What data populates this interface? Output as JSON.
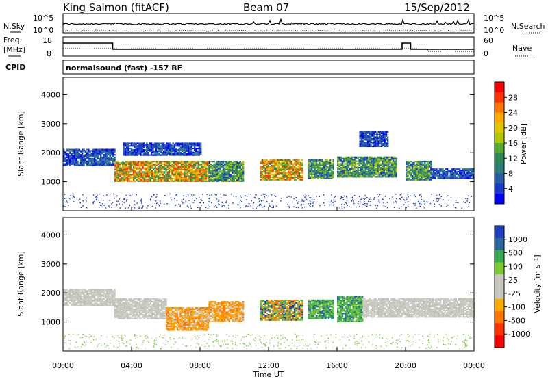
{
  "header": {
    "station": "King Salmon (fitACF)",
    "beam": "Beam 07",
    "date": "15/Sep/2012"
  },
  "panels": {
    "noise_left_label": "N.Sky",
    "noise_right_label": "N.Search",
    "noise_ticks": [
      "10^5",
      "10^0"
    ],
    "freq_label_1": "Freq.",
    "freq_label_2": "[MHz]",
    "freq_ticks": [
      "18",
      "8"
    ],
    "nave_label": "Nave",
    "nave_ticks": [
      "60",
      "0"
    ],
    "cpid_label": "CPID",
    "cpid_text": "normalsound (fast) -157 RF"
  },
  "chart_data": [
    {
      "type": "heatmap",
      "name": "power",
      "ylabel": "Slant Range [km]",
      "xlabel": "",
      "ylim": [
        0,
        4600
      ],
      "yticks": [
        "4000",
        "3000",
        "2000",
        "1000"
      ],
      "colorbar_label": "Power [dB]",
      "colorbar_ticks": [
        "28",
        "24",
        "20",
        "16",
        "12",
        "8",
        "4"
      ],
      "colorbar_colors": [
        "#ff0000",
        "#ff3300",
        "#ff7700",
        "#ffaa00",
        "#e0c800",
        "#b0c800",
        "#55aa33",
        "#2e8b57",
        "#2f7f7f",
        "#2a5fa8",
        "#1a3ccc",
        "#0000ff"
      ],
      "echo_bands": [
        {
          "t0": 0.0,
          "t1": 3.0,
          "r0": 1550,
          "r1": 2100,
          "level": "low"
        },
        {
          "t0": 3.0,
          "t1": 8.5,
          "r0": 1000,
          "r1": 1700,
          "level": "high"
        },
        {
          "t0": 3.5,
          "t1": 8.0,
          "r0": 1900,
          "r1": 2350,
          "level": "low"
        },
        {
          "t0": 8.5,
          "t1": 10.5,
          "r0": 1000,
          "r1": 1700,
          "level": "mid"
        },
        {
          "t0": 11.5,
          "t1": 14.0,
          "r0": 1050,
          "r1": 1750,
          "level": "high"
        },
        {
          "t0": 14.3,
          "t1": 15.8,
          "r0": 1100,
          "r1": 1750,
          "level": "mid"
        },
        {
          "t0": 16.0,
          "t1": 19.5,
          "r0": 1150,
          "r1": 1850,
          "level": "mid"
        },
        {
          "t0": 20.0,
          "t1": 21.5,
          "r0": 1050,
          "r1": 1700,
          "level": "mid"
        },
        {
          "t0": 21.5,
          "t1": 24.0,
          "r0": 1100,
          "r1": 1450,
          "level": "low"
        },
        {
          "t0": 17.3,
          "t1": 19.0,
          "r0": 2200,
          "r1": 2700,
          "level": "low"
        }
      ]
    },
    {
      "type": "heatmap",
      "name": "velocity",
      "ylabel": "Slant Range [km]",
      "xlabel": "Time UT",
      "ylim": [
        0,
        4600
      ],
      "yticks": [
        "4000",
        "3000",
        "2000",
        "1000"
      ],
      "xticks": [
        "00:00",
        "04:00",
        "08:00",
        "12:00",
        "16:00",
        "20:00",
        "00:00"
      ],
      "xlim_hours": [
        0,
        24
      ],
      "colorbar_label": "Velocity [m s⁻¹]",
      "colorbar_ticks": [
        "1000",
        "500",
        "100",
        "25",
        "-25",
        "-100",
        "-500",
        "-1000"
      ],
      "colorbar_colors": [
        "#2040c0",
        "#2a6aa0",
        "#3aaa50",
        "#7acc30",
        "#c8c8c0",
        "#c8c8c0",
        "#ffaa00",
        "#ff7700",
        "#ff3300",
        "#ff0000"
      ],
      "echo_bands": [
        {
          "t0": 0.0,
          "t1": 3.0,
          "r0": 1550,
          "r1": 2100,
          "level": "ground"
        },
        {
          "t0": 3.0,
          "t1": 6.0,
          "r0": 1100,
          "r1": 1800,
          "level": "ground"
        },
        {
          "t0": 6.0,
          "t1": 8.5,
          "r0": 700,
          "r1": 1500,
          "level": "neg"
        },
        {
          "t0": 8.5,
          "t1": 10.5,
          "r0": 1000,
          "r1": 1700,
          "level": "neg"
        },
        {
          "t0": 11.5,
          "t1": 14.0,
          "r0": 1050,
          "r1": 1750,
          "level": "mix"
        },
        {
          "t0": 14.3,
          "t1": 15.8,
          "r0": 1100,
          "r1": 1750,
          "level": "pos"
        },
        {
          "t0": 16.0,
          "t1": 17.5,
          "r0": 1000,
          "r1": 1900,
          "level": "pos"
        },
        {
          "t0": 17.5,
          "t1": 24.0,
          "r0": 1150,
          "r1": 1800,
          "level": "ground"
        }
      ]
    }
  ]
}
